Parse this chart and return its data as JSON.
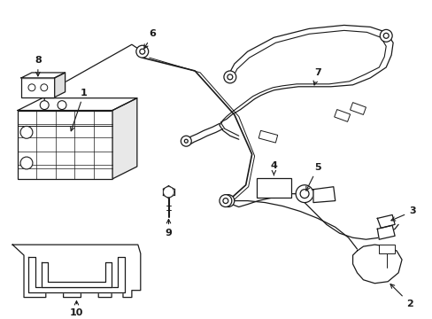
{
  "background_color": "#ffffff",
  "line_color": "#1a1a1a",
  "lw": 0.9,
  "figsize": [
    4.89,
    3.6
  ],
  "dpi": 100
}
